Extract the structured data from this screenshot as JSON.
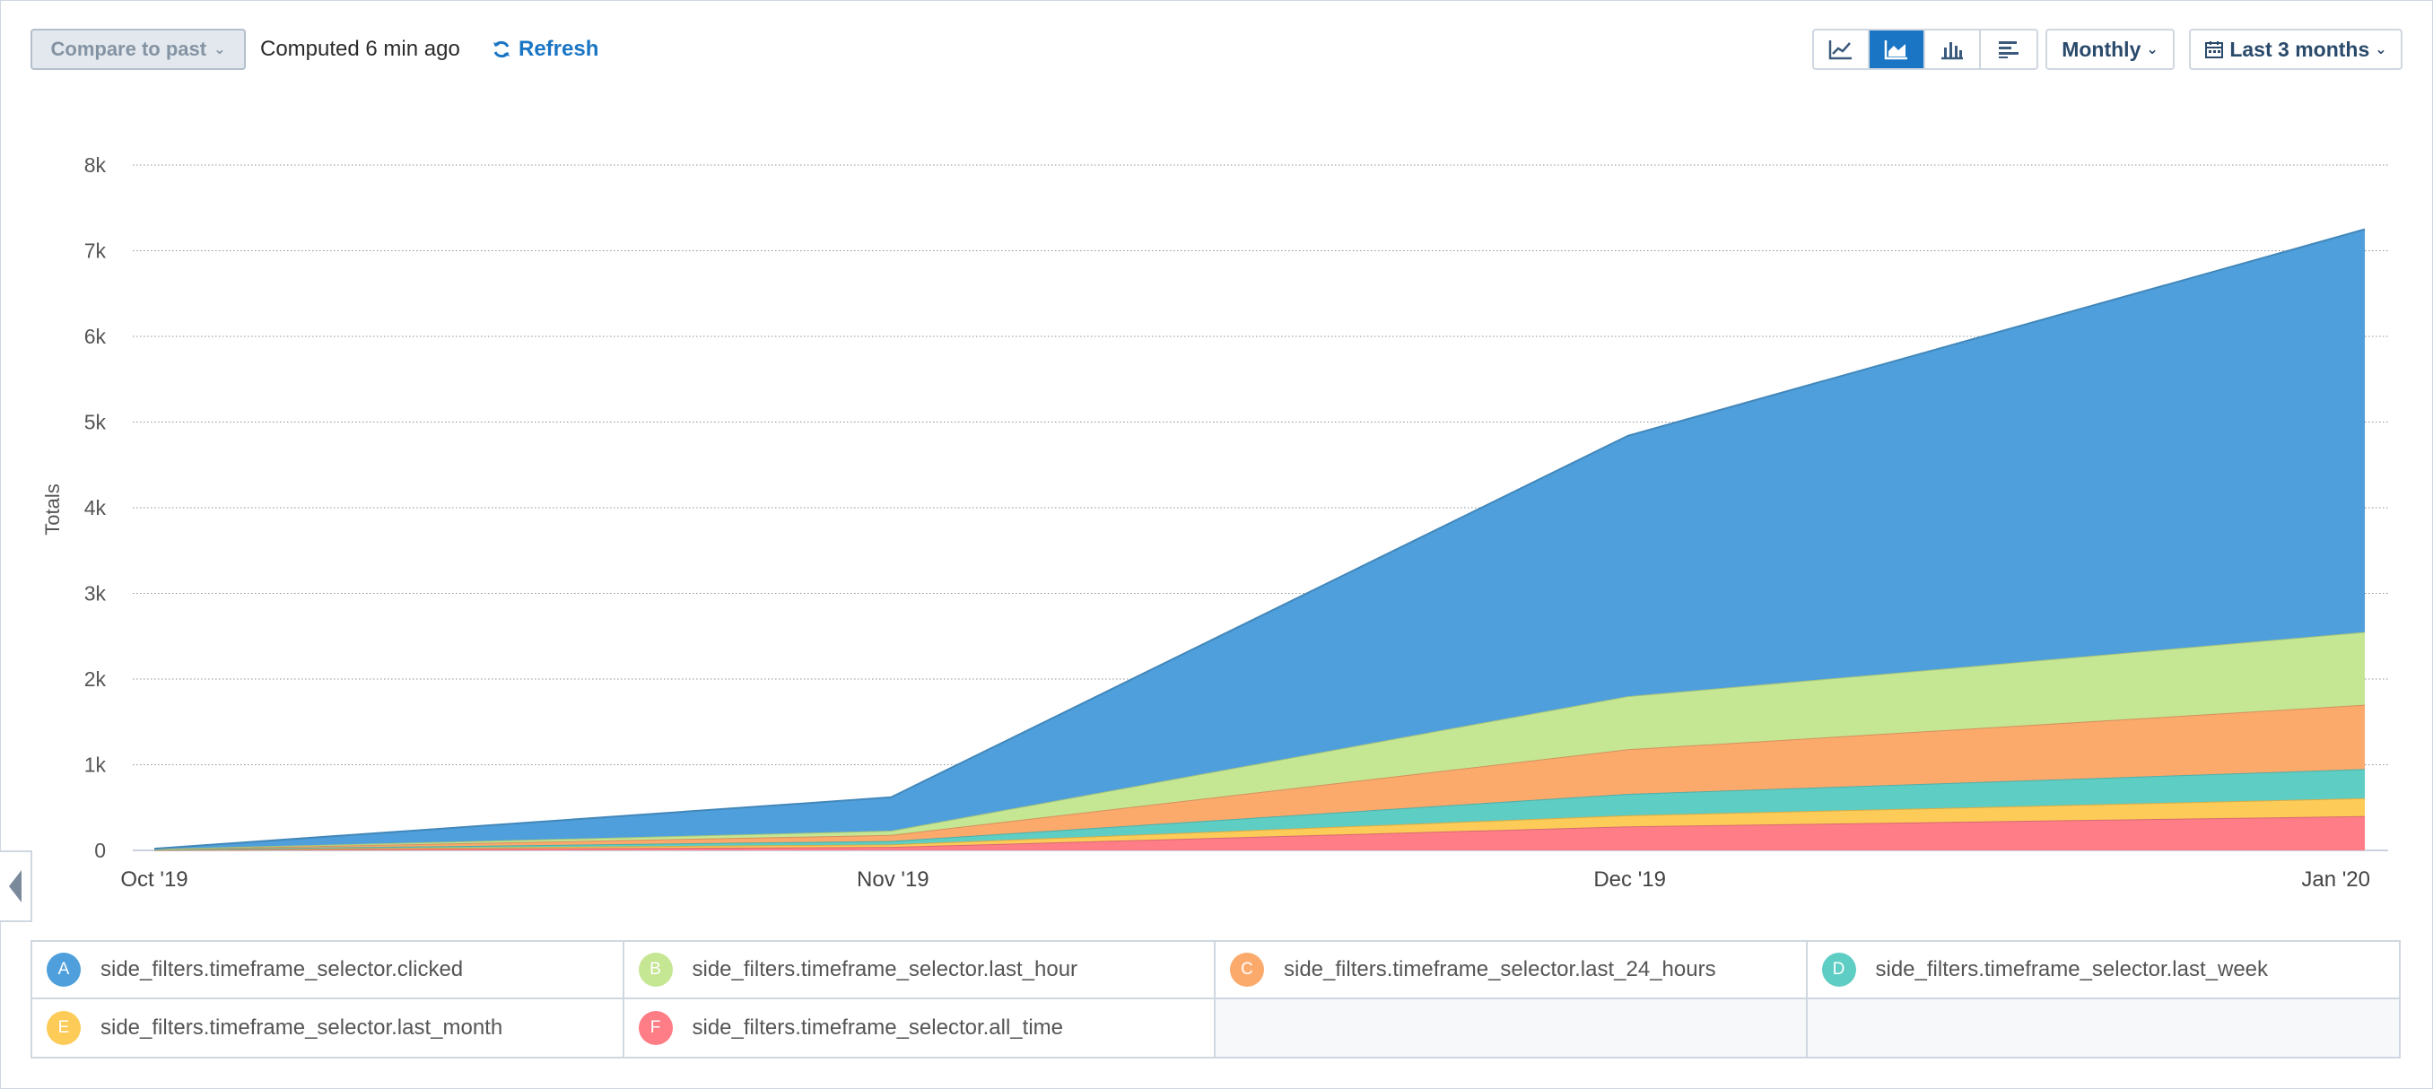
{
  "toolbar": {
    "compare_label": "Compare to past",
    "computed_text": "Computed 6 min ago",
    "refresh_label": "Refresh",
    "interval_label": "Monthly",
    "range_label": "Last 3 months",
    "chart_types": [
      "line-chart-icon",
      "area-chart-icon",
      "bar-chart-icon",
      "horizontal-bar-icon"
    ],
    "active_chart_type": "area-chart-icon"
  },
  "colors": {
    "A": "#4e9fdb",
    "B": "#c5e693",
    "C": "#fbaa6c",
    "D": "#5ecdc4",
    "E": "#fdcb57",
    "F": "#fe7d86",
    "accent": "#1a75c4"
  },
  "chart_data": {
    "type": "area",
    "stacked": true,
    "ylabel": "Totals",
    "yticks": [
      "0",
      "1k",
      "2k",
      "3k",
      "4k",
      "5k",
      "6k",
      "7k",
      "8k"
    ],
    "ylim": [
      0,
      8000
    ],
    "x": [
      "Oct '19",
      "Nov '19",
      "Dec '19",
      "Jan '20"
    ],
    "grid": true,
    "series": [
      {
        "name": "side_filters.timeframe_selector.all_time",
        "letter": "F",
        "values": [
          5,
          40,
          280,
          400
        ]
      },
      {
        "name": "side_filters.timeframe_selector.last_month",
        "letter": "E",
        "values": [
          3,
          30,
          130,
          210
        ]
      },
      {
        "name": "side_filters.timeframe_selector.last_week",
        "letter": "D",
        "values": [
          3,
          40,
          250,
          340
        ]
      },
      {
        "name": "side_filters.timeframe_selector.last_24_hours",
        "letter": "C",
        "values": [
          3,
          70,
          520,
          750
        ]
      },
      {
        "name": "side_filters.timeframe_selector.last_hour",
        "letter": "B",
        "values": [
          2,
          50,
          620,
          850
        ]
      },
      {
        "name": "side_filters.timeframe_selector.clicked",
        "letter": "A",
        "values": [
          4,
          390,
          3040,
          4700
        ]
      }
    ]
  },
  "legend": [
    {
      "letter": "A",
      "label": "side_filters.timeframe_selector.clicked"
    },
    {
      "letter": "B",
      "label": "side_filters.timeframe_selector.last_hour"
    },
    {
      "letter": "C",
      "label": "side_filters.timeframe_selector.last_24_hours"
    },
    {
      "letter": "D",
      "label": "side_filters.timeframe_selector.last_week"
    },
    {
      "letter": "E",
      "label": "side_filters.timeframe_selector.last_month"
    },
    {
      "letter": "F",
      "label": "side_filters.timeframe_selector.all_time"
    }
  ]
}
